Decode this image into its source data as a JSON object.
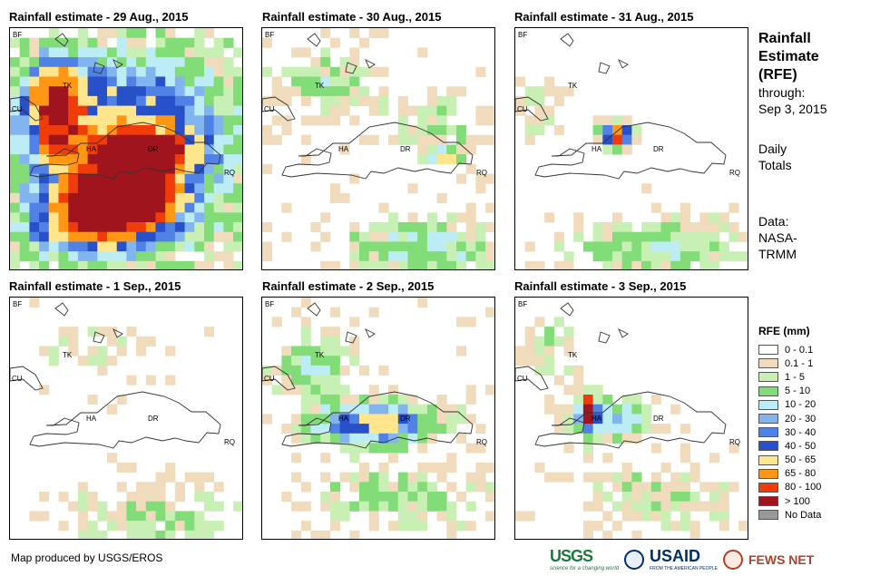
{
  "panels": [
    {
      "title": "Rainfall estimate - 29 Aug., 2015",
      "day": 0
    },
    {
      "title": "Rainfall estimate - 30 Aug., 2015",
      "day": 1
    },
    {
      "title": "Rainfall estimate - 31 Aug., 2015",
      "day": 2
    },
    {
      "title": "Rainfall estimate - 1 Sep., 2015",
      "day": 3
    },
    {
      "title": "Rainfall estimate - 2 Sep., 2015",
      "day": 4
    },
    {
      "title": "Rainfall estimate - 3 Sep., 2015",
      "day": 5
    }
  ],
  "map_labels": {
    "bf": "BF",
    "tk": "TK",
    "cu": "CU",
    "ha": "HA",
    "dr": "DR",
    "rq": "RQ"
  },
  "title_block": {
    "line1": "Rainfall",
    "line2": "Estimate",
    "line3": "(RFE)",
    "through": "through:",
    "date": "Sep 3, 2015",
    "daily": "Daily",
    "totals": "Totals",
    "data_label": "Data:",
    "data_src1": "NASA-",
    "data_src2": "TRMM"
  },
  "legend": {
    "title": "RFE (mm)",
    "classes": [
      {
        "label": "0 - 0.1",
        "color": "#ffffff"
      },
      {
        "label": "0.1 - 1",
        "color": "#f0dcbc"
      },
      {
        "label": "1 - 5",
        "color": "#c8f0b4"
      },
      {
        "label": "5 - 10",
        "color": "#82dc78"
      },
      {
        "label": "10 - 20",
        "color": "#bcecf4"
      },
      {
        "label": "20 - 30",
        "color": "#82b4f0"
      },
      {
        "label": "30 - 40",
        "color": "#5082e6"
      },
      {
        "label": "40 - 50",
        "color": "#2850c8"
      },
      {
        "label": "50 - 65",
        "color": "#ffe68c"
      },
      {
        "label": "65 - 80",
        "color": "#ff9614"
      },
      {
        "label": "80 - 100",
        "color": "#f03c0a"
      },
      {
        "label": "> 100",
        "color": "#a0141e"
      },
      {
        "label": "No Data",
        "color": "#999999"
      }
    ]
  },
  "footer": {
    "credit": "Map produced by USGS/EROS"
  },
  "logos": {
    "usgs": "USGS",
    "usgs_tag": "science for a changing world",
    "usaid": "USAID",
    "usaid_tag": "FROM THE AMERICAN PEOPLE",
    "fews": "FEWS NET"
  }
}
